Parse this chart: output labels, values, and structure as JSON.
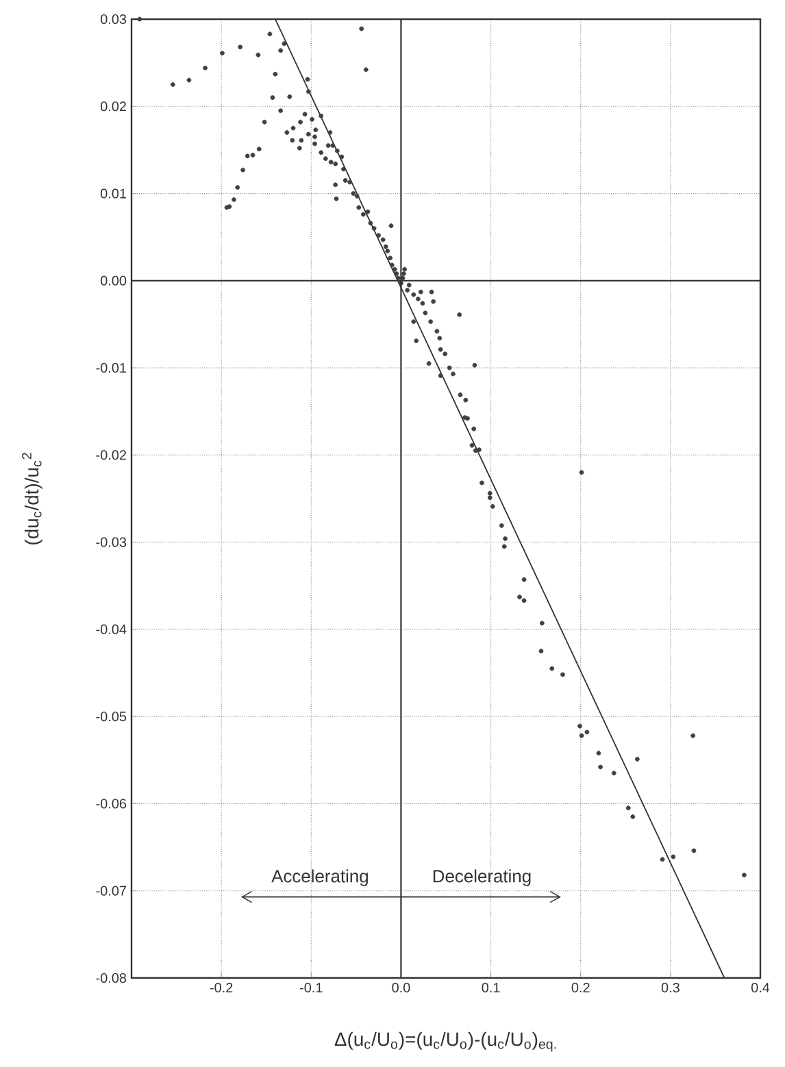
{
  "chart_data": {
    "type": "scatter",
    "xlabel": "Δ(u$_{c}$/U$_{o}$)=(u$_{c}$/U$_{o}$)-(u$_{c}$/U$_{o}$)$_{eq.}$",
    "ylabel": "(du$_{c}$/dt)/u$_{c}$$^{2}$",
    "xlim": [
      -0.3,
      0.4
    ],
    "ylim": [
      -0.08,
      0.03
    ],
    "xticks": [
      -0.2,
      -0.1,
      {
        "value": 0,
        "label": "0.0"
      },
      0.1,
      0.2,
      0.3,
      0.4
    ],
    "yticks": [
      0.03,
      0.02,
      0.01,
      {
        "value": 0,
        "label": "0.00"
      },
      -0.01,
      -0.02,
      -0.03,
      -0.04,
      -0.05,
      -0.06,
      -0.07,
      -0.08
    ],
    "grid": true,
    "annotations": [
      "Accelerating",
      "Decelerating"
    ],
    "series": [
      {
        "color": "#404040",
        "marker": "circle",
        "x": [
          -0.291,
          -0.254,
          -0.236,
          -0.218,
          -0.199,
          -0.179,
          -0.159,
          -0.146,
          -0.134,
          -0.13,
          -0.14,
          -0.143,
          -0.134,
          -0.124,
          -0.152,
          -0.158,
          -0.165,
          -0.171,
          -0.176,
          -0.182,
          -0.186,
          -0.191,
          -0.194,
          -0.044,
          -0.039,
          -0.127,
          -0.12,
          -0.121,
          -0.113,
          -0.112,
          -0.111,
          -0.107,
          -0.103,
          -0.104,
          -0.103,
          -0.099,
          -0.096,
          -0.095,
          -0.096,
          -0.089,
          -0.089,
          -0.084,
          -0.079,
          -0.081,
          -0.076,
          -0.078,
          -0.073,
          -0.071,
          -0.073,
          -0.072,
          -0.066,
          -0.064,
          -0.062,
          -0.057,
          -0.053,
          -0.049,
          -0.047,
          -0.042,
          -0.037,
          -0.034,
          -0.03,
          -0.025,
          -0.02,
          -0.017,
          -0.015,
          -0.012,
          -0.01,
          -0.007,
          -0.005,
          -0.003,
          0.0,
          0.003,
          -0.011,
          0.004,
          0.002,
          0.009,
          0.007,
          0.019,
          0.014,
          0.022,
          0.034,
          0.036,
          0.024,
          0.027,
          0.033,
          0.014,
          0.065,
          0.04,
          0.017,
          0.043,
          0.044,
          0.049,
          0.031,
          0.054,
          0.044,
          0.058,
          0.082,
          0.066,
          0.072,
          0.071,
          0.074,
          0.081,
          0.079,
          0.087,
          0.083,
          0.201,
          0.09,
          0.099,
          0.099,
          0.102,
          0.112,
          0.116,
          0.115,
          0.137,
          0.132,
          0.137,
          0.157,
          0.156,
          0.168,
          0.18,
          0.199,
          0.201,
          0.207,
          0.325,
          0.22,
          0.222,
          0.237,
          0.263,
          0.253,
          0.258,
          0.291,
          0.303,
          0.326,
          0.382
        ],
        "values": [
          0.03,
          0.0225,
          0.023,
          0.0244,
          0.0261,
          0.0268,
          0.0259,
          0.0283,
          0.0264,
          0.0272,
          0.0237,
          0.021,
          0.0195,
          0.0211,
          0.0182,
          0.0151,
          0.0144,
          0.0143,
          0.0127,
          0.0107,
          0.0093,
          0.0085,
          0.0084,
          0.0289,
          0.0242,
          0.017,
          0.0175,
          0.0161,
          0.0152,
          0.0182,
          0.0161,
          0.0191,
          0.0168,
          0.0231,
          0.0217,
          0.0185,
          0.0165,
          0.0173,
          0.0157,
          0.0189,
          0.0147,
          0.014,
          0.017,
          0.0155,
          0.0155,
          0.0136,
          0.0134,
          0.0149,
          0.011,
          0.0094,
          0.0142,
          0.0128,
          0.0115,
          0.0113,
          0.01,
          0.0097,
          0.0084,
          0.0076,
          0.0079,
          0.0066,
          0.006,
          0.0052,
          0.0047,
          0.0039,
          0.0034,
          0.0026,
          0.0018,
          0.0013,
          0.0008,
          0.0003,
          -0.0003,
          0.0008,
          0.0063,
          0.0013,
          0.0003,
          -0.0005,
          -0.0011,
          -0.0021,
          -0.0016,
          -0.0013,
          -0.0013,
          -0.0024,
          -0.0026,
          -0.0037,
          -0.0047,
          -0.0047,
          -0.0039,
          -0.0058,
          -0.0069,
          -0.0066,
          -0.0079,
          -0.0084,
          -0.0095,
          -0.01,
          -0.0109,
          -0.0107,
          -0.0097,
          -0.0131,
          -0.0137,
          -0.0157,
          -0.0158,
          -0.017,
          -0.0189,
          -0.0194,
          -0.0195,
          -0.022,
          -0.0232,
          -0.0244,
          -0.0249,
          -0.0259,
          -0.0281,
          -0.0296,
          -0.0305,
          -0.0343,
          -0.0363,
          -0.0367,
          -0.0393,
          -0.0425,
          -0.0445,
          -0.0452,
          -0.0511,
          -0.0522,
          -0.0518,
          -0.0522,
          -0.0542,
          -0.0558,
          -0.0565,
          -0.0549,
          -0.0605,
          -0.0615,
          -0.0664,
          -0.0661,
          -0.0654,
          -0.0682
        ]
      },
      {
        "type": "line",
        "color": "#303030",
        "marker": "none",
        "line_style": "solid",
        "x": [
          -0.14,
          0.36
        ],
        "values": [
          0.03,
          -0.08
        ]
      }
    ]
  }
}
